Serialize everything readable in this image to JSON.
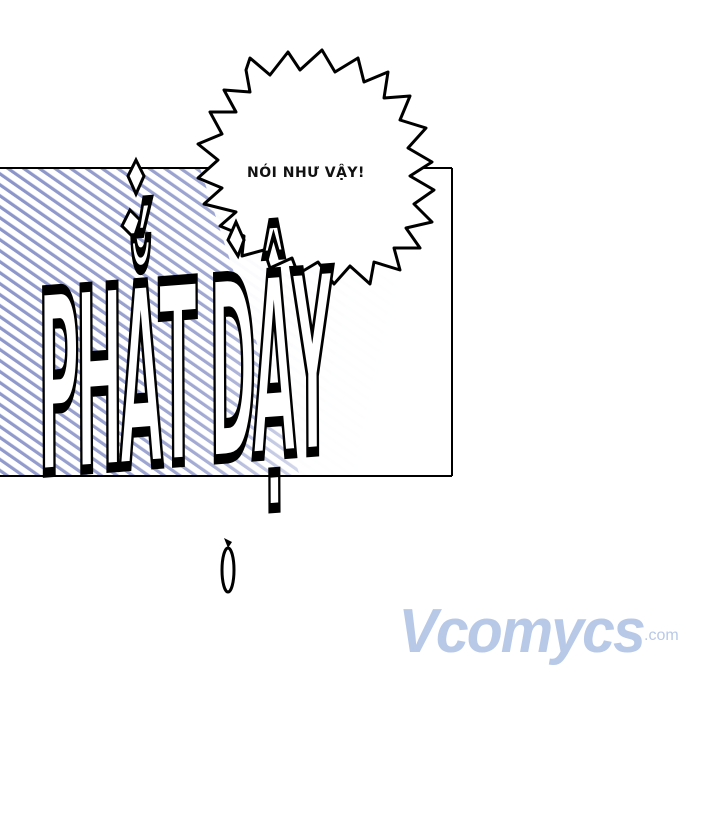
{
  "speech_bubble": {
    "text": "NÓI NHƯ VẬY!"
  },
  "sound_effect": {
    "text": "PHẮT DẬY"
  },
  "watermark": {
    "text": "Vcomycs",
    "suffix": ".com",
    "tagline": ""
  },
  "colors": {
    "ink": "#000000",
    "paper": "#ffffff",
    "tone": "#8a94c8",
    "watermark": "#b8c9e8"
  }
}
